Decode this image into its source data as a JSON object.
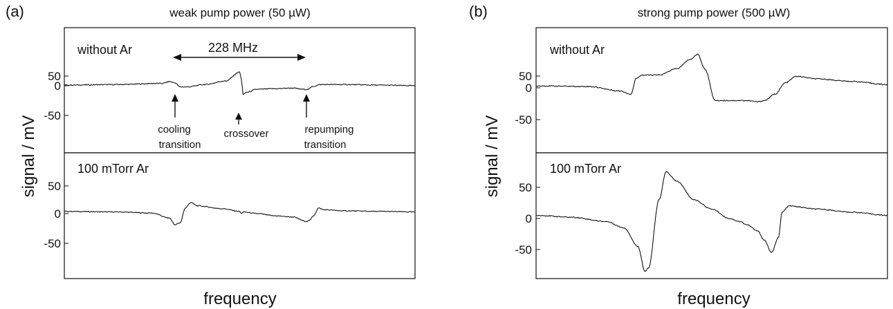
{
  "panels": [
    {
      "letter": "(a)",
      "title": "weak pump power (50 µW)",
      "ylabel": "signal / mV",
      "xlabel": "frequency",
      "top": {
        "label": "without Ar",
        "ticks": [
          "50",
          "0",
          "-50"
        ],
        "annotations": {
          "separation": "228 MHz",
          "cooling": [
            "cooling",
            "transition"
          ],
          "crossover": [
            "crossover"
          ],
          "repumping": [
            "repumping",
            "transition"
          ]
        }
      },
      "bottom": {
        "label": "100 mTorr Ar",
        "ticks": [
          "50",
          "0",
          "-50"
        ]
      }
    },
    {
      "letter": "(b)",
      "title": "strong pump power (500 µW)",
      "ylabel": "signal / mV",
      "xlabel": "frequency",
      "top": {
        "label": "without Ar",
        "ticks": [
          "50",
          "0",
          "-50"
        ]
      },
      "bottom": {
        "label": "100 mTorr Ar",
        "ticks": [
          "50",
          "0",
          "-50"
        ]
      }
    }
  ],
  "chart_data": [
    {
      "type": "line",
      "panel": "(a) top",
      "title": "weak pump power (50 µW)",
      "series_label": "without Ar",
      "xlabel": "frequency",
      "ylabel": "signal / mV",
      "xlim": [
        0,
        1
      ],
      "ylim": [
        -95,
        85
      ],
      "x": [
        0,
        0.15,
        0.28,
        0.3,
        0.315,
        0.33,
        0.35,
        0.4,
        0.46,
        0.5,
        0.505,
        0.51,
        0.52,
        0.55,
        0.6,
        0.65,
        0.68,
        0.695,
        0.71,
        0.73,
        0.8,
        0.9,
        1.0
      ],
      "y": [
        1,
        2,
        4,
        7,
        5,
        -2,
        -2,
        2,
        8,
        23,
        10,
        -15,
        -11,
        -6,
        -5,
        -4,
        -6,
        -6,
        -1,
        2,
        2,
        1,
        0
      ]
    },
    {
      "type": "line",
      "panel": "(a) bottom",
      "series_label": "100 mTorr Ar",
      "xlabel": "frequency",
      "ylabel": "signal / mV",
      "xlim": [
        0,
        1
      ],
      "ylim": [
        -95,
        85
      ],
      "x": [
        0,
        0.15,
        0.25,
        0.3,
        0.315,
        0.33,
        0.345,
        0.36,
        0.38,
        0.45,
        0.5,
        0.505,
        0.51,
        0.55,
        0.6,
        0.65,
        0.69,
        0.7,
        0.71,
        0.725,
        0.74,
        0.8,
        0.9,
        1.0
      ],
      "y": [
        4,
        3,
        1,
        -8,
        -20,
        -17,
        10,
        20,
        14,
        9,
        4,
        0,
        3,
        0,
        -4,
        -6,
        -14,
        -12,
        -4,
        10,
        7,
        5,
        4,
        3
      ]
    },
    {
      "type": "line",
      "panel": "(b) top",
      "title": "strong pump power (500 µW)",
      "series_label": "without Ar",
      "xlabel": "frequency",
      "ylabel": "signal / mV",
      "xlim": [
        0,
        1
      ],
      "ylim": [
        -95,
        85
      ],
      "x": [
        0,
        0.15,
        0.24,
        0.27,
        0.285,
        0.3,
        0.35,
        0.4,
        0.44,
        0.46,
        0.48,
        0.51,
        0.6,
        0.63,
        0.65,
        0.68,
        0.71,
        0.74,
        0.8,
        0.9,
        1.0
      ],
      "y": [
        3,
        2,
        -5,
        -10,
        15,
        20,
        20,
        30,
        45,
        53,
        30,
        -20,
        -20,
        -22,
        -20,
        -10,
        8,
        18,
        14,
        10,
        5
      ]
    },
    {
      "type": "line",
      "panel": "(b) bottom",
      "series_label": "100 mTorr Ar",
      "xlabel": "frequency",
      "ylabel": "signal / mV",
      "xlim": [
        0,
        1
      ],
      "ylim": [
        -95,
        85
      ],
      "x": [
        0,
        0.1,
        0.2,
        0.25,
        0.29,
        0.31,
        0.32,
        0.35,
        0.37,
        0.4,
        0.45,
        0.5,
        0.55,
        0.58,
        0.6,
        0.63,
        0.65,
        0.67,
        0.69,
        0.7,
        0.72,
        0.8,
        0.9,
        1.0
      ],
      "y": [
        5,
        2,
        -5,
        -15,
        -45,
        -85,
        -80,
        30,
        75,
        60,
        30,
        15,
        0,
        -5,
        -10,
        -20,
        -35,
        -55,
        -30,
        10,
        20,
        15,
        10,
        5
      ]
    }
  ]
}
